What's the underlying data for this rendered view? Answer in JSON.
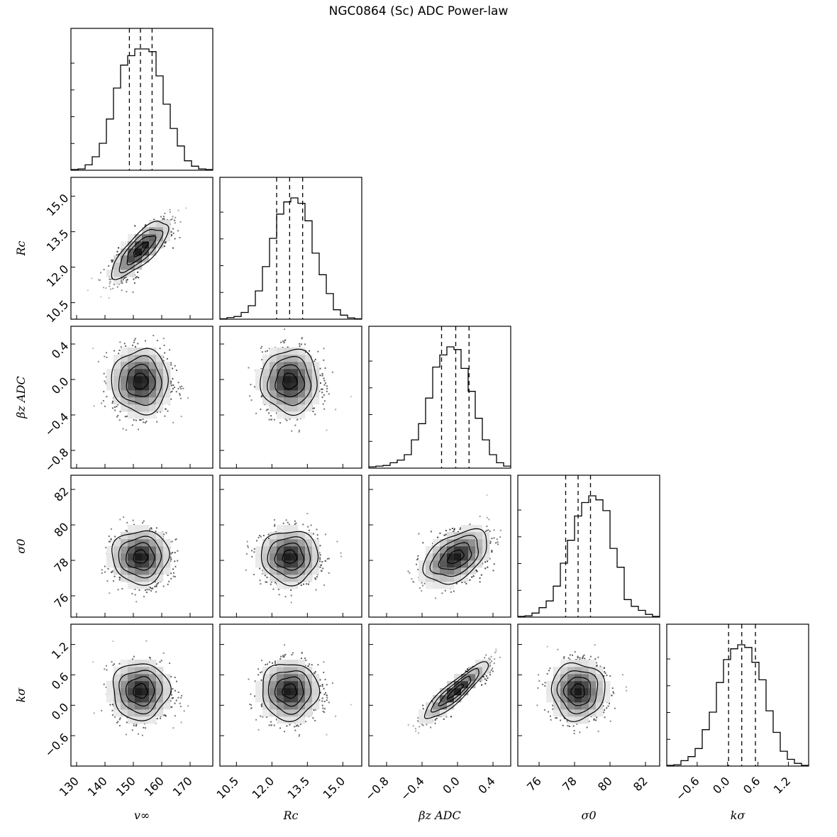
{
  "chart_data": {
    "type": "corner",
    "title": "NGC0864 (Sc) ADC Power-law",
    "parameters": [
      {
        "key": "v_inf",
        "label": "v∞",
        "range": [
          128,
          178
        ],
        "ticks": [
          130,
          140,
          150,
          160,
          170
        ],
        "tick_labels": [
          "130",
          "140",
          "150",
          "160",
          "170"
        ],
        "quantiles": [
          148.6,
          152.5,
          156.6
        ],
        "center": 152.5,
        "sigma": 5.0
      },
      {
        "key": "R_c",
        "label": "Rc",
        "range": [
          9.8,
          15.8
        ],
        "ticks": [
          10.5,
          12.0,
          13.5,
          15.0
        ],
        "tick_labels": [
          "10.5",
          "12.0",
          "13.5",
          "15.0"
        ],
        "quantiles": [
          12.2,
          12.75,
          13.3
        ],
        "center": 12.75,
        "sigma": 0.6
      },
      {
        "key": "beta_z_ADC",
        "label": "βz ADC",
        "range": [
          -1.0,
          0.6
        ],
        "ticks": [
          -0.8,
          -0.4,
          0.0,
          0.4
        ],
        "tick_labels": [
          "−0.8",
          "−0.4",
          "0.0",
          "0.4"
        ],
        "quantiles": [
          -0.18,
          -0.02,
          0.13
        ],
        "center": -0.02,
        "sigma": 0.18
      },
      {
        "key": "sigma_0",
        "label": "σ0",
        "range": [
          74.8,
          82.8
        ],
        "ticks": [
          76,
          78,
          80,
          82
        ],
        "tick_labels": [
          "76",
          "78",
          "80",
          "82"
        ],
        "quantiles": [
          77.5,
          78.2,
          78.9
        ],
        "center": 78.2,
        "sigma": 0.75
      },
      {
        "key": "k_sigma",
        "label": "kσ",
        "range": [
          -1.2,
          1.6
        ],
        "ticks": [
          -0.6,
          0.0,
          0.6,
          1.2
        ],
        "tick_labels": [
          "−0.6",
          "0.0",
          "0.6",
          "1.2"
        ],
        "quantiles": [
          0.02,
          0.28,
          0.55
        ],
        "center": 0.28,
        "sigma": 0.28
      }
    ],
    "histograms": [
      [
        0.005,
        0.01,
        0.04,
        0.1,
        0.2,
        0.38,
        0.61,
        0.78,
        0.85,
        0.9,
        0.9,
        0.88,
        0.7,
        0.49,
        0.31,
        0.18,
        0.07,
        0.03,
        0.01,
        0.005
      ],
      [
        0.003,
        0.012,
        0.02,
        0.05,
        0.1,
        0.21,
        0.39,
        0.6,
        0.78,
        0.87,
        0.9,
        0.86,
        0.73,
        0.49,
        0.33,
        0.19,
        0.07,
        0.03,
        0.01,
        0.003
      ],
      [
        0.01,
        0.015,
        0.02,
        0.04,
        0.06,
        0.1,
        0.21,
        0.33,
        0.52,
        0.75,
        0.84,
        0.9,
        0.88,
        0.74,
        0.57,
        0.37,
        0.21,
        0.1,
        0.04,
        0.015
      ],
      [
        0.005,
        0.01,
        0.03,
        0.07,
        0.12,
        0.23,
        0.4,
        0.57,
        0.75,
        0.85,
        0.9,
        0.87,
        0.79,
        0.51,
        0.37,
        0.13,
        0.08,
        0.05,
        0.02,
        0.005
      ],
      [
        0.005,
        0.01,
        0.04,
        0.07,
        0.13,
        0.27,
        0.4,
        0.62,
        0.79,
        0.87,
        0.9,
        0.88,
        0.77,
        0.64,
        0.41,
        0.25,
        0.11,
        0.05,
        0.02,
        0.005
      ]
    ],
    "correlations": {
      "1-0": 0.78,
      "2-0": 0.0,
      "2-1": 0.0,
      "3-0": 0.0,
      "3-1": 0.0,
      "3-2": 0.45,
      "4-0": 0.0,
      "4-1": 0.0,
      "4-2": 0.9,
      "4-3": 0.0
    }
  }
}
